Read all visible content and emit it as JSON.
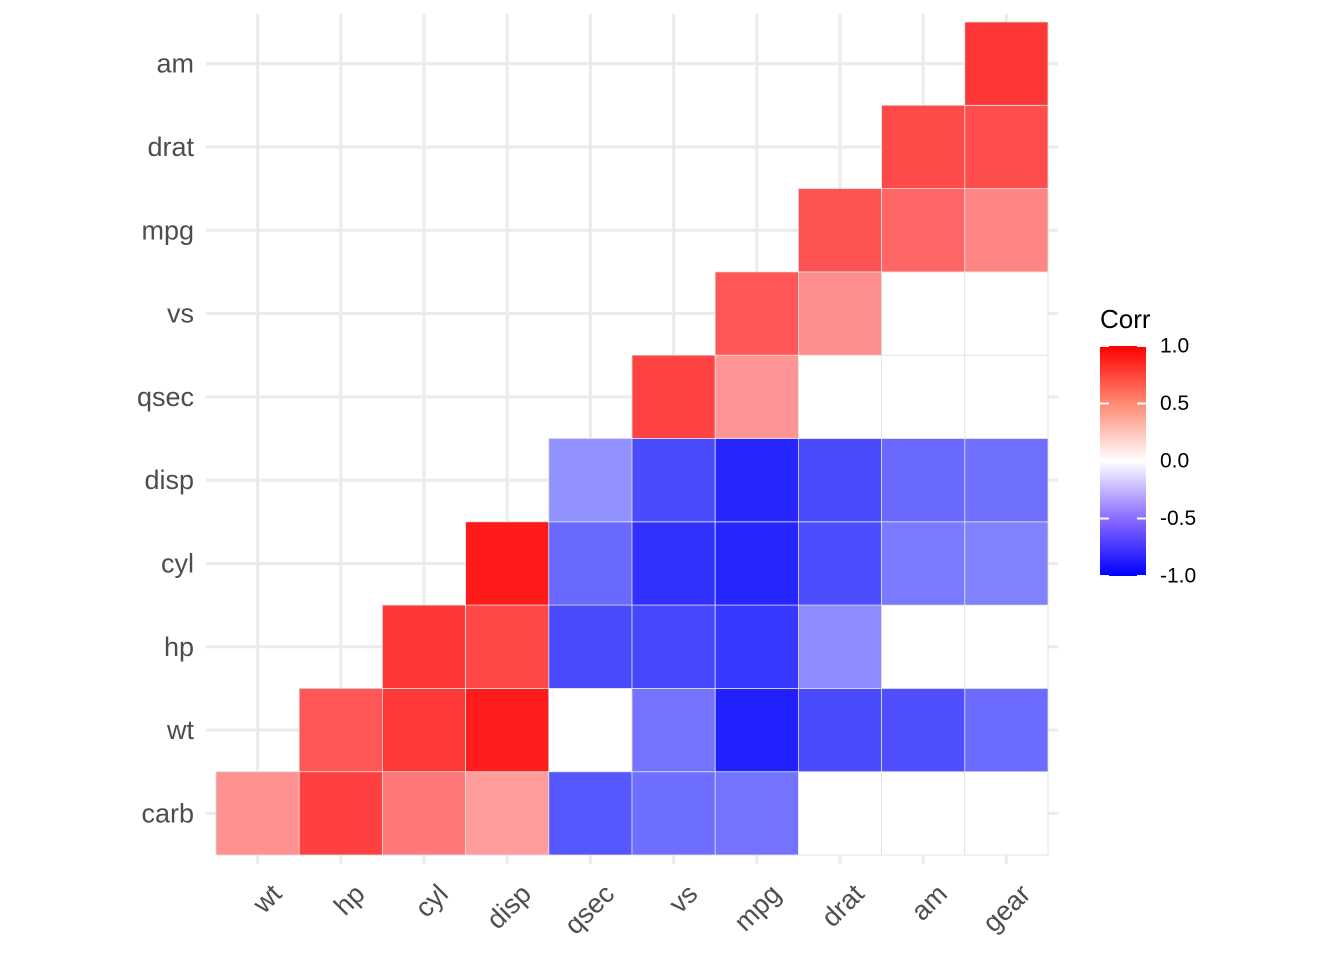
{
  "chart_data": {
    "type": "heatmap",
    "title": "",
    "x_categories": [
      "wt",
      "hp",
      "cyl",
      "disp",
      "qsec",
      "vs",
      "mpg",
      "drat",
      "am",
      "gear"
    ],
    "y_categories": [
      "carb",
      "wt",
      "hp",
      "cyl",
      "disp",
      "qsec",
      "vs",
      "mpg",
      "drat",
      "am"
    ],
    "matrix_note": "rows follow y_categories (bottom to top), columns follow x_categories; null = no tile drawn",
    "values": [
      [
        0.43,
        0.75,
        0.53,
        0.39,
        -0.66,
        -0.57,
        -0.55,
        0.0,
        0.0,
        0.0
      ],
      [
        null,
        0.66,
        0.78,
        0.89,
        0.0,
        -0.55,
        -0.87,
        -0.71,
        -0.69,
        -0.58
      ],
      [
        null,
        null,
        0.79,
        0.72,
        -0.71,
        -0.72,
        -0.78,
        -0.45,
        0.0,
        0.0
      ],
      [
        null,
        null,
        null,
        0.9,
        -0.59,
        -0.81,
        -0.85,
        -0.7,
        -0.52,
        -0.49
      ],
      [
        null,
        null,
        null,
        null,
        -0.43,
        -0.71,
        -0.85,
        -0.71,
        -0.59,
        -0.56
      ],
      [
        null,
        null,
        null,
        null,
        null,
        0.74,
        0.42,
        0.0,
        0.0,
        0.0
      ],
      [
        null,
        null,
        null,
        null,
        null,
        null,
        0.66,
        0.44,
        0.0,
        0.0
      ],
      [
        null,
        null,
        null,
        null,
        null,
        null,
        null,
        0.68,
        0.6,
        0.48
      ],
      [
        null,
        null,
        null,
        null,
        null,
        null,
        null,
        null,
        0.71,
        0.7
      ],
      [
        null,
        null,
        null,
        null,
        null,
        null,
        null,
        null,
        null,
        0.79
      ]
    ],
    "xlabel": "",
    "ylabel": "",
    "legend": {
      "title": "Corr",
      "ticks": [
        "1.0",
        "0.5",
        "0.0",
        "-0.5",
        "-1.0"
      ],
      "range": [
        -1,
        1
      ],
      "low_color": "#0000ff",
      "mid_color": "#ffffff",
      "high_color": "#ff0000",
      "position": "right"
    }
  }
}
